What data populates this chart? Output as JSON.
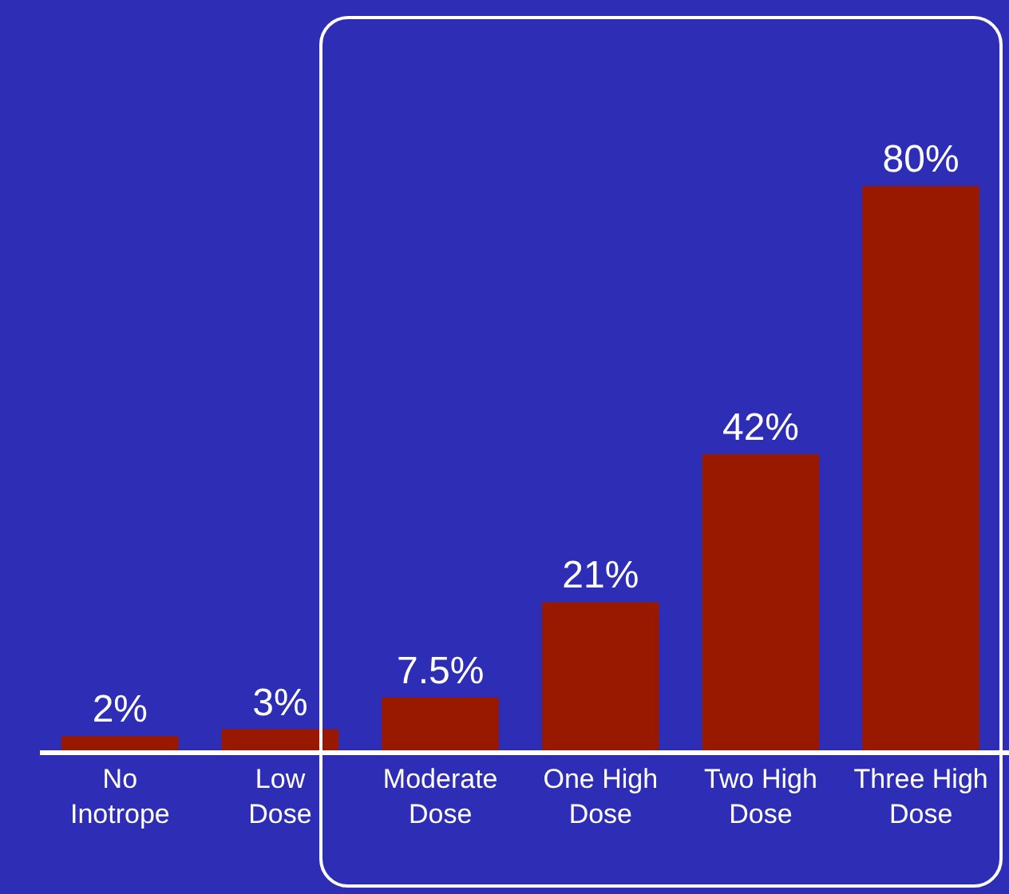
{
  "chart_data": {
    "type": "bar",
    "categories": [
      "No\nInotrope",
      "Low\nDose",
      "Moderate\nDose",
      "One High\nDose",
      "Two High\nDose",
      "Three High\nDose"
    ],
    "values": [
      2,
      3,
      7.5,
      21,
      42,
      80
    ],
    "value_labels": [
      "2%",
      "3%",
      "7.5%",
      "21%",
      "42%",
      "80%"
    ],
    "color": "#991800"
  }
}
